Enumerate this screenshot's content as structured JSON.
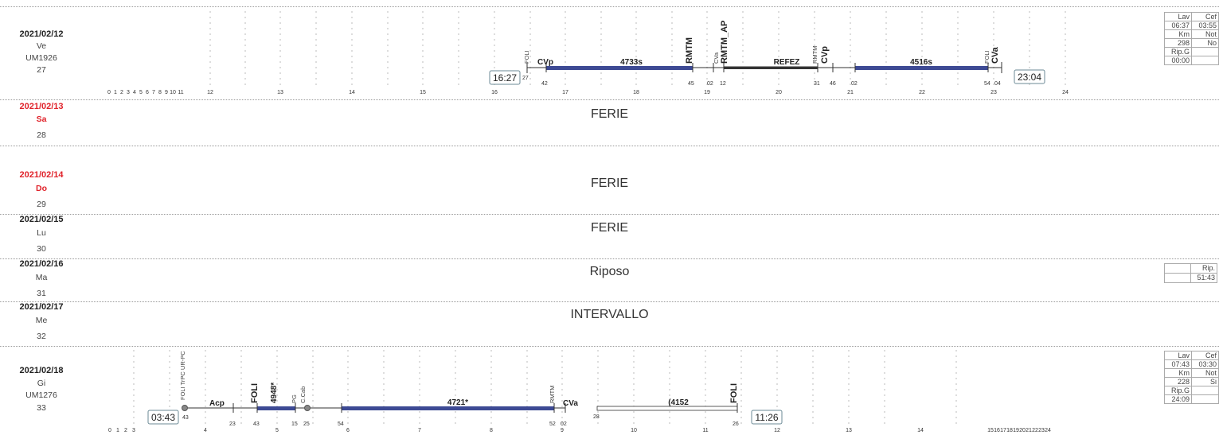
{
  "days": [
    {
      "date": "2021/02/12",
      "weekday": "Ve",
      "code": "UM1926",
      "week": "27",
      "start": "16:27",
      "end": "23:04",
      "summary": {
        "lav_label": "Lav",
        "cef_label": "Cef",
        "lav": "06:37",
        "cef": "03:55",
        "km_label": "Km",
        "not_label": "Not",
        "km": "298",
        "not": "No",
        "ripg_label": "Rip.G",
        "ripg": "00:00"
      },
      "labels": {
        "foli1": "FOLI",
        "cvp1": "CVp",
        "tr1": "4733s",
        "rmtm1": "RMTM",
        "cva1": "CVa",
        "rmtm_ap": "RMTM_AP",
        "refez": "REFEZ",
        "rmtm2": "RMTM",
        "cvp2": "CVp",
        "tr2": "4516s",
        "foli2": "FOLI",
        "cva2": "CVa"
      },
      "mins": [
        "27",
        "42",
        "45",
        "02",
        "12",
        "31",
        "46",
        "02",
        "54",
        "04"
      ]
    },
    {
      "date": "2021/02/13",
      "weekday": "Sa",
      "week": "28",
      "status": "FERIE"
    },
    {
      "date": "2021/02/14",
      "weekday": "Do",
      "week": "29",
      "status": "FERIE"
    },
    {
      "date": "2021/02/15",
      "weekday": "Lu",
      "week": "30",
      "status": "FERIE"
    },
    {
      "date": "2021/02/16",
      "weekday": "Ma",
      "week": "31",
      "status": "Riposo",
      "rip_label": "Rip.",
      "rip_value": "51:43"
    },
    {
      "date": "2021/02/17",
      "weekday": "Me",
      "week": "32",
      "status": "INTERVALLO"
    },
    {
      "date": "2021/02/18",
      "weekday": "Gi",
      "code": "UM1276",
      "week": "33",
      "start": "03:43",
      "end": "11:26",
      "summary": {
        "lav_label": "Lav",
        "cef_label": "Cef",
        "lav": "07:43",
        "cef": "03:30",
        "km_label": "Km",
        "not_label": "Not",
        "km": "228",
        "not": "Si",
        "ripg_label": "Rip.G",
        "ripg": "24:09"
      },
      "labels": {
        "foli_trpc": "FOLI TrPC UR-PC",
        "acp": "Acp",
        "foli1": "FOLI",
        "tr1": "4948*",
        "pg": "PG",
        "ccab": "C.Cab",
        "tr2": "4721*",
        "rmtm": "RMTM",
        "cva": "CVa",
        "tr3": "(4152",
        "foli2": "FOLI"
      },
      "mins": [
        "43",
        "23",
        "43",
        "15",
        "25",
        "54",
        "52",
        "02",
        "28",
        "26"
      ]
    }
  ],
  "timeline_top": {
    "hours": [
      "0",
      "1",
      "2",
      "3",
      "4",
      "5",
      "6",
      "7",
      "8",
      "9",
      "10",
      "11",
      "12",
      "13",
      "14",
      "15",
      "16",
      "17",
      "18",
      "19",
      "20",
      "21",
      "22",
      "23",
      "24"
    ]
  },
  "timeline_bottom": {
    "hours": [
      "0",
      "1",
      "2",
      "3",
      "4",
      "5",
      "6",
      "7",
      "8",
      "9",
      "10",
      "11",
      "12",
      "13",
      "14",
      "15",
      "16",
      "17",
      "18",
      "19",
      "20",
      "21",
      "22",
      "23",
      "24"
    ]
  },
  "colors": {
    "train": "#3d4a94",
    "line": "#333333",
    "date_red": "#e0222a"
  }
}
